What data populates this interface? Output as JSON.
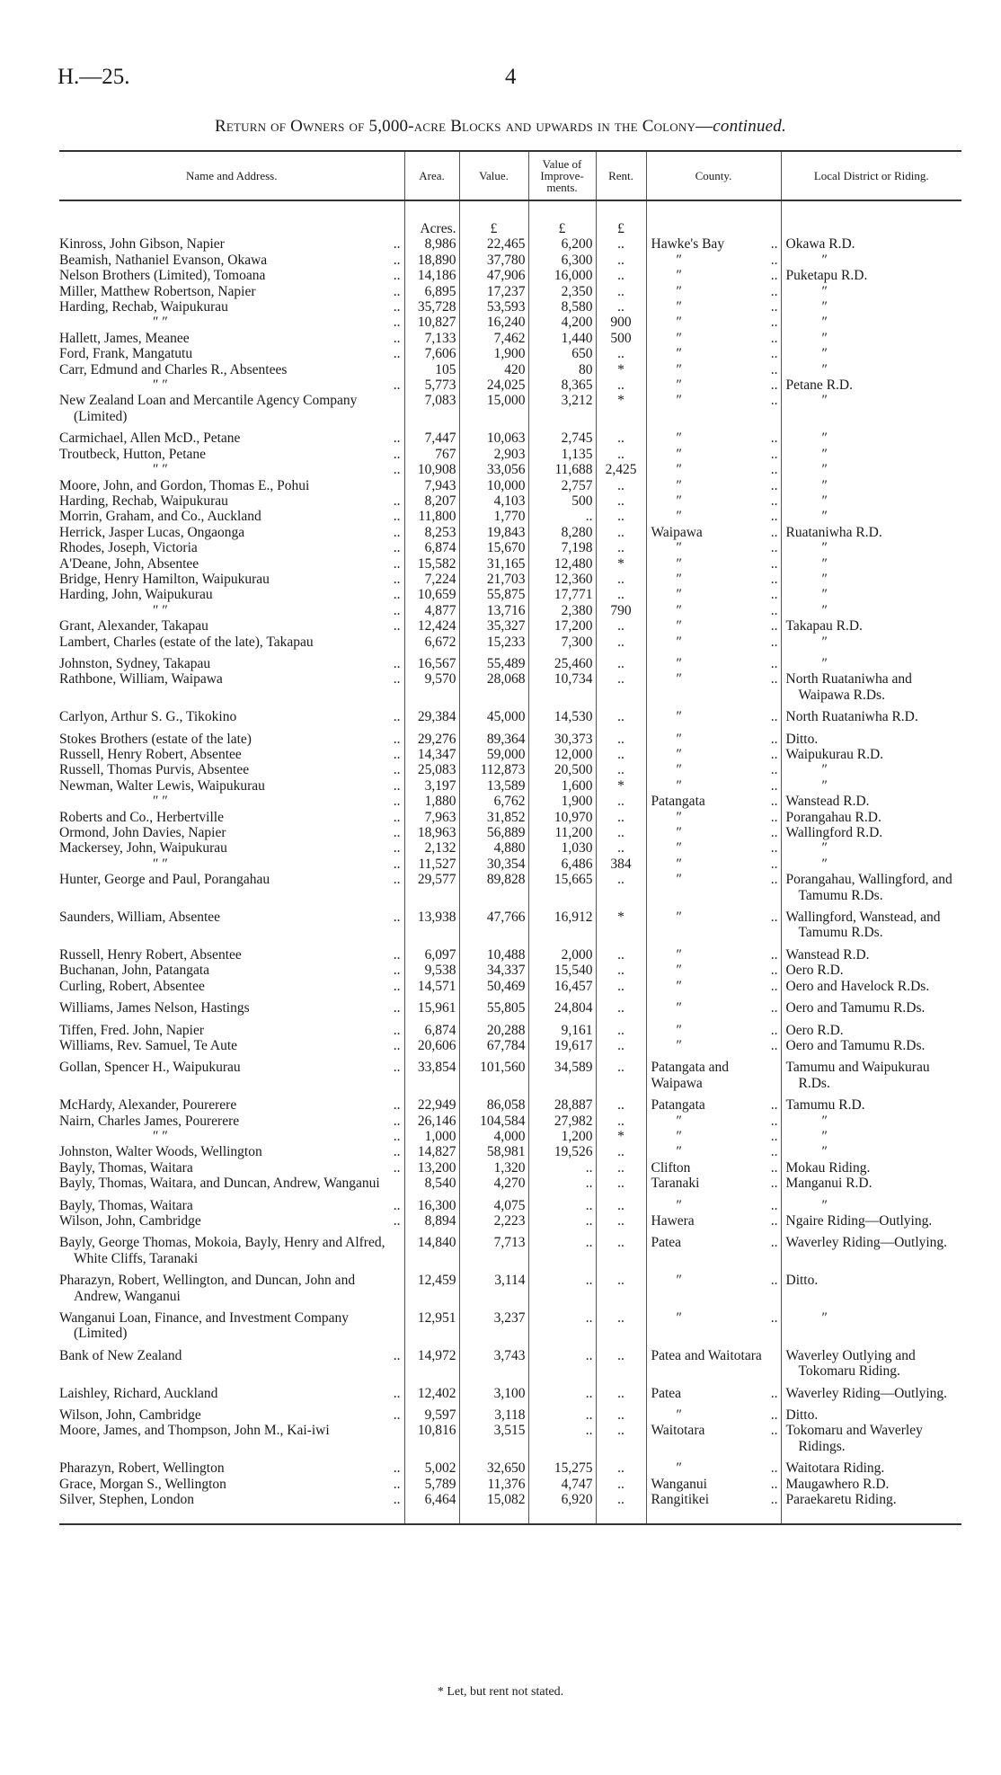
{
  "header": {
    "code": "H.—25.",
    "page": "4"
  },
  "title": {
    "main": "Return of Owners of 5,000-acre Blocks and upwards in the Colony—",
    "italic": "continued."
  },
  "columns": [
    "Name and Address.",
    "Area.",
    "Value.",
    "Value of Improve-ments.",
    "Rent.",
    "County.",
    "Local District or Riding."
  ],
  "units": [
    "Acres.",
    "£",
    "£",
    "£"
  ],
  "leader": "..",
  "rows": [
    {
      "n": "Kinross, John Gibson, Napier",
      "a": "8,986",
      "v": "22,465",
      "i": "6,200",
      "r": "..",
      "c": "Hawke's Bay",
      "l": "Okawa R.D."
    },
    {
      "n": "Beamish, Nathaniel Evanson, Okawa",
      "a": "18,890",
      "v": "37,780",
      "i": "6,300",
      "r": "..",
      "c": "″",
      "l": "″"
    },
    {
      "n": "Nelson Brothers (Limited), Tomoana",
      "a": "14,186",
      "v": "47,906",
      "i": "16,000",
      "r": "..",
      "c": "″",
      "l": "Puketapu R.D."
    },
    {
      "n": "Miller, Matthew Robertson, Napier",
      "a": "6,895",
      "v": "17,237",
      "i": "2,350",
      "r": "..",
      "c": "″",
      "l": "″"
    },
    {
      "n": "Harding, Rechab, Waipukurau",
      "a": "35,728",
      "v": "53,593",
      "i": "8,580",
      "r": "..",
      "c": "″",
      "l": "″"
    },
    {
      "n": "″ ″",
      "a": "10,827",
      "v": "16,240",
      "i": "4,200",
      "r": "900",
      "c": "″",
      "l": "″"
    },
    {
      "n": "Hallett, James, Meanee",
      "a": "7,133",
      "v": "7,462",
      "i": "1,440",
      "r": "500",
      "c": "″",
      "l": "″"
    },
    {
      "n": "Ford, Frank, Mangatutu",
      "a": "7,606",
      "v": "1,900",
      "i": "650",
      "r": "..",
      "c": "″",
      "l": "″"
    },
    {
      "n": "Carr, Edmund and Charles R., Absentees",
      "a": "105",
      "v": "420",
      "i": "80",
      "r": "*",
      "c": "″",
      "l": "″"
    },
    {
      "n": "″ ″",
      "a": "5,773",
      "v": "24,025",
      "i": "8,365",
      "r": "..",
      "c": "″",
      "l": "Petane R.D."
    },
    {
      "n": "New Zealand Loan and Mercantile Agency Company (Limited)",
      "a": "7,083",
      "v": "15,000",
      "i": "3,212",
      "r": "*",
      "c": "″",
      "l": "″"
    },
    {
      "n": "Carmichael, Allen McD., Petane",
      "a": "7,447",
      "v": "10,063",
      "i": "2,745",
      "r": "..",
      "c": "″",
      "l": "″"
    },
    {
      "n": "Troutbeck, Hutton, Petane",
      "a": "767",
      "v": "2,903",
      "i": "1,135",
      "r": "..",
      "c": "″",
      "l": "″"
    },
    {
      "n": "″ ″",
      "a": "10,908",
      "v": "33,056",
      "i": "11,688",
      "r": "2,425",
      "c": "″",
      "l": "″"
    },
    {
      "n": "Moore, John, and Gordon, Thomas E., Pohui",
      "a": "7,943",
      "v": "10,000",
      "i": "2,757",
      "r": "..",
      "c": "″",
      "l": "″"
    },
    {
      "n": "Harding, Rechab, Waipukurau",
      "a": "8,207",
      "v": "4,103",
      "i": "500",
      "r": "..",
      "c": "″",
      "l": "″"
    },
    {
      "n": "Morrin, Graham, and Co., Auckland",
      "a": "11,800",
      "v": "1,770",
      "i": "..",
      "r": "..",
      "c": "″",
      "l": "″"
    },
    {
      "n": "Herrick, Jasper Lucas, Ongaonga",
      "a": "8,253",
      "v": "19,843",
      "i": "8,280",
      "r": "..",
      "c": "Waipawa",
      "l": "Ruataniwha R.D."
    },
    {
      "n": "Rhodes, Joseph, Victoria",
      "a": "6,874",
      "v": "15,670",
      "i": "7,198",
      "r": "..",
      "c": "″",
      "l": "″"
    },
    {
      "n": "A'Deane, John, Absentee",
      "a": "15,582",
      "v": "31,165",
      "i": "12,480",
      "r": "*",
      "c": "″",
      "l": "″"
    },
    {
      "n": "Bridge, Henry Hamilton, Waipukurau",
      "a": "7,224",
      "v": "21,703",
      "i": "12,360",
      "r": "..",
      "c": "″",
      "l": "″"
    },
    {
      "n": "Harding, John, Waipukurau",
      "a": "10,659",
      "v": "55,875",
      "i": "17,771",
      "r": "..",
      "c": "″",
      "l": "″"
    },
    {
      "n": "″ ″",
      "a": "4,877",
      "v": "13,716",
      "i": "2,380",
      "r": "790",
      "c": "″",
      "l": "″"
    },
    {
      "n": "Grant, Alexander, Takapau",
      "a": "12,424",
      "v": "35,327",
      "i": "17,200",
      "r": "..",
      "c": "″",
      "l": "Takapau R.D."
    },
    {
      "n": "Lambert, Charles (estate of the late), Takapau",
      "a": "6,672",
      "v": "15,233",
      "i": "7,300",
      "r": "..",
      "c": "″",
      "l": "″"
    },
    {
      "n": "Johnston, Sydney, Takapau",
      "a": "16,567",
      "v": "55,489",
      "i": "25,460",
      "r": "..",
      "c": "″",
      "l": "″"
    },
    {
      "n": "Rathbone, William, Waipawa",
      "a": "9,570",
      "v": "28,068",
      "i": "10,734",
      "r": "..",
      "c": "″",
      "l": "North Ruataniwha and Waipawa R.Ds."
    },
    {
      "n": "Carlyon, Arthur S. G., Tikokino",
      "a": "29,384",
      "v": "45,000",
      "i": "14,530",
      "r": "..",
      "c": "″",
      "l": "North Ruataniwha R.D."
    },
    {
      "n": "Stokes Brothers (estate of the late)",
      "a": "29,276",
      "v": "89,364",
      "i": "30,373",
      "r": "..",
      "c": "″",
      "l": "Ditto."
    },
    {
      "n": "Russell, Henry Robert, Absentee",
      "a": "14,347",
      "v": "59,000",
      "i": "12,000",
      "r": "..",
      "c": "″",
      "l": "Waipukurau R.D."
    },
    {
      "n": "Russell, Thomas Purvis, Absentee",
      "a": "25,083",
      "v": "112,873",
      "i": "20,500",
      "r": "..",
      "c": "″",
      "l": "″"
    },
    {
      "n": "Newman, Walter Lewis, Waipukurau",
      "a": "3,197",
      "v": "13,589",
      "i": "1,600",
      "r": "*",
      "c": "″",
      "l": "″"
    },
    {
      "n": "″ ″",
      "a": "1,880",
      "v": "6,762",
      "i": "1,900",
      "r": "..",
      "c": "Patangata",
      "l": "Wanstead R.D."
    },
    {
      "n": "Roberts and Co., Herbertville",
      "a": "7,963",
      "v": "31,852",
      "i": "10,970",
      "r": "..",
      "c": "″",
      "l": "Porangahau R.D."
    },
    {
      "n": "Ormond, John Davies, Napier",
      "a": "18,963",
      "v": "56,889",
      "i": "11,200",
      "r": "..",
      "c": "″",
      "l": "Wallingford R.D."
    },
    {
      "n": "Mackersey, John, Waipukurau",
      "a": "2,132",
      "v": "4,880",
      "i": "1,030",
      "r": "..",
      "c": "″",
      "l": "″"
    },
    {
      "n": "″ ″",
      "a": "11,527",
      "v": "30,354",
      "i": "6,486",
      "r": "384",
      "c": "″",
      "l": "″"
    },
    {
      "n": "Hunter, George and Paul, Porangahau",
      "a": "29,577",
      "v": "89,828",
      "i": "15,665",
      "r": "..",
      "c": "″",
      "l": "Porangahau, Wallingford, and Tamumu R.Ds."
    },
    {
      "n": "Saunders, William, Absentee",
      "a": "13,938",
      "v": "47,766",
      "i": "16,912",
      "r": "*",
      "c": "″",
      "l": "Wallingford, Wanstead, and Tamumu R.Ds."
    },
    {
      "n": "Russell, Henry Robert, Absentee",
      "a": "6,097",
      "v": "10,488",
      "i": "2,000",
      "r": "..",
      "c": "″",
      "l": "Wanstead R.D."
    },
    {
      "n": "Buchanan, John, Patangata",
      "a": "9,538",
      "v": "34,337",
      "i": "15,540",
      "r": "..",
      "c": "″",
      "l": "Oero R.D."
    },
    {
      "n": "Curling, Robert, Absentee",
      "a": "14,571",
      "v": "50,469",
      "i": "16,457",
      "r": "..",
      "c": "″",
      "l": "Oero and Havelock R.Ds."
    },
    {
      "n": "Williams, James Nelson, Hastings",
      "a": "15,961",
      "v": "55,805",
      "i": "24,804",
      "r": "..",
      "c": "″",
      "l": "Oero and Tamumu R.Ds."
    },
    {
      "n": "Tiffen, Fred. John, Napier",
      "a": "6,874",
      "v": "20,288",
      "i": "9,161",
      "r": "..",
      "c": "″",
      "l": "Oero R.D."
    },
    {
      "n": "Williams, Rev. Samuel, Te Aute",
      "a": "20,606",
      "v": "67,784",
      "i": "19,617",
      "r": "..",
      "c": "″",
      "l": "Oero and Tamumu R.Ds."
    },
    {
      "n": "Gollan, Spencer H., Waipukurau",
      "a": "33,854",
      "v": "101,560",
      "i": "34,589",
      "r": "..",
      "c": "Patangata and Waipawa",
      "l": "Tamumu and Waipukurau R.Ds."
    },
    {
      "n": "McHardy, Alexander, Pourerere",
      "a": "22,949",
      "v": "86,058",
      "i": "28,887",
      "r": "..",
      "c": "Patangata",
      "l": "Tamumu R.D."
    },
    {
      "n": "Nairn, Charles James, Pourerere",
      "a": "26,146",
      "v": "104,584",
      "i": "27,982",
      "r": "..",
      "c": "″",
      "l": "″"
    },
    {
      "n": "″ ″",
      "a": "1,000",
      "v": "4,000",
      "i": "1,200",
      "r": "*",
      "c": "″",
      "l": "″"
    },
    {
      "n": "Johnston, Walter Woods, Wellington",
      "a": "14,827",
      "v": "58,981",
      "i": "19,526",
      "r": "..",
      "c": "″",
      "l": "″"
    },
    {
      "n": "Bayly, Thomas, Waitara",
      "a": "13,200",
      "v": "1,320",
      "i": "..",
      "r": "..",
      "c": "Clifton",
      "l": "Mokau Riding."
    },
    {
      "n": "Bayly, Thomas, Waitara, and Duncan, Andrew, Wanganui",
      "a": "8,540",
      "v": "4,270",
      "i": "..",
      "r": "..",
      "c": "Taranaki",
      "l": "Manganui R.D."
    },
    {
      "n": "Bayly, Thomas, Waitara",
      "a": "16,300",
      "v": "4,075",
      "i": "..",
      "r": "..",
      "c": "″",
      "l": "″"
    },
    {
      "n": "Wilson, John, Cambridge",
      "a": "8,894",
      "v": "2,223",
      "i": "..",
      "r": "..",
      "c": "Hawera",
      "l": "Ngaire Riding—Outlying."
    },
    {
      "n": "Bayly, George Thomas, Mokoia, Bayly, Henry and Alfred, White Cliffs, Taranaki",
      "a": "14,840",
      "v": "7,713",
      "i": "..",
      "r": "..",
      "c": "Patea",
      "l": "Waverley Riding—Outlying."
    },
    {
      "n": "Pharazyn, Robert, Wellington, and Duncan, John and Andrew, Wanganui",
      "a": "12,459",
      "v": "3,114",
      "i": "..",
      "r": "..",
      "c": "″",
      "l": "Ditto."
    },
    {
      "n": "Wanganui Loan, Finance, and Investment Company (Limited)",
      "a": "12,951",
      "v": "3,237",
      "i": "..",
      "r": "..",
      "c": "″",
      "l": "″"
    },
    {
      "n": "Bank of New Zealand",
      "a": "14,972",
      "v": "3,743",
      "i": "..",
      "r": "..",
      "c": "Patea and Waitotara",
      "l": "Waverley Outlying and Tokomaru Riding."
    },
    {
      "n": "Laishley, Richard, Auckland",
      "a": "12,402",
      "v": "3,100",
      "i": "..",
      "r": "..",
      "c": "Patea",
      "l": "Waverley Riding—Outlying."
    },
    {
      "n": "Wilson, John, Cambridge",
      "a": "9,597",
      "v": "3,118",
      "i": "..",
      "r": "..",
      "c": "″",
      "l": "Ditto."
    },
    {
      "n": "Moore, James, and Thompson, John M., Kai-iwi",
      "a": "10,816",
      "v": "3,515",
      "i": "..",
      "r": "..",
      "c": "Waitotara",
      "l": "Tokomaru and Waverley Ridings."
    },
    {
      "n": "Pharazyn, Robert, Wellington",
      "a": "5,002",
      "v": "32,650",
      "i": "15,275",
      "r": "..",
      "c": "″",
      "l": "Waitotara Riding."
    },
    {
      "n": "Grace, Morgan S., Wellington",
      "a": "5,789",
      "v": "11,376",
      "i": "4,747",
      "r": "..",
      "c": "Wanganui",
      "l": "Maugawhero R.D."
    },
    {
      "n": "Silver, Stephen, London",
      "a": "6,464",
      "v": "15,082",
      "i": "6,920",
      "r": "..",
      "c": "Rangitikei",
      "l": "Paraekaretu Riding."
    }
  ],
  "footnote": "* Let, but rent not stated."
}
